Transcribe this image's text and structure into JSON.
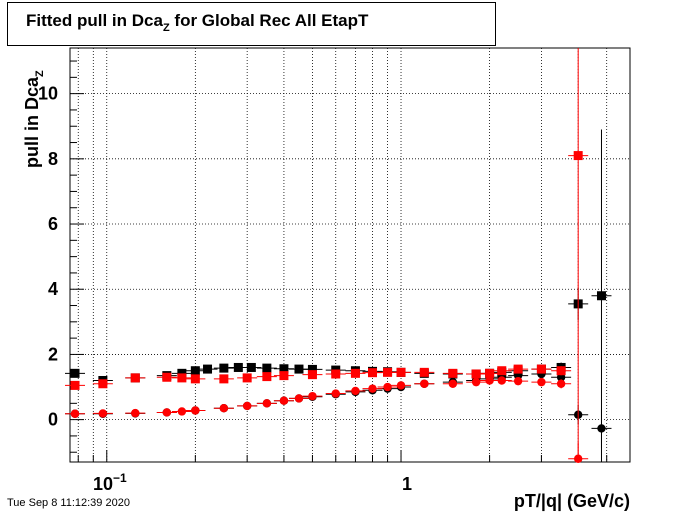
{
  "header": {
    "title_main": "Fitted pull in Dca",
    "title_sub": "Z",
    "title_rest": " for Global Rec All EtapT"
  },
  "footer": {
    "date": "Tue Sep  8 11:12:39 2020"
  },
  "colors": {
    "black_series": "#000000",
    "red_series": "#ff0000"
  },
  "chart_data": {
    "type": "scatter",
    "title": "Fitted pull in Dca_Z for Global Rec All EtapT",
    "xlabel": "pT/|q| (GeV/c)",
    "ylabel": "pull in Dca_Z",
    "x_scale": "log",
    "xlim": [
      0.075,
      6.0
    ],
    "ylim": [
      -1.3,
      11.4
    ],
    "grid": true,
    "x_tick_labels": [
      "10^-1",
      "1"
    ],
    "y_tick_labels": [
      "0",
      "2",
      "4",
      "6",
      "8",
      "10"
    ],
    "series": [
      {
        "color": "#000000",
        "marker": "square",
        "x": [
          0.078,
          0.097,
          0.125,
          0.16,
          0.18,
          0.2,
          0.22,
          0.25,
          0.28,
          0.31,
          0.35,
          0.4,
          0.45,
          0.5,
          0.6,
          0.7,
          0.8,
          0.9,
          1.0,
          1.2,
          1.5,
          1.8,
          2.0,
          2.2,
          2.5,
          3.0,
          3.5,
          4.0,
          4.8
        ],
        "y": [
          1.42,
          1.2,
          1.28,
          1.35,
          1.42,
          1.5,
          1.55,
          1.58,
          1.6,
          1.6,
          1.58,
          1.56,
          1.55,
          1.54,
          1.52,
          1.5,
          1.48,
          1.47,
          1.45,
          1.42,
          1.4,
          1.4,
          1.42,
          1.45,
          1.5,
          1.55,
          1.6,
          3.55,
          3.8
        ],
        "y_err": [
          0.05,
          0.04,
          0.03,
          0.03,
          0.03,
          0.03,
          0.03,
          0.03,
          0.03,
          0.03,
          0.03,
          0.03,
          0.03,
          0.03,
          0.03,
          0.03,
          0.03,
          0.03,
          0.04,
          0.04,
          0.05,
          0.06,
          0.07,
          0.08,
          0.1,
          0.12,
          0.15,
          0.5,
          5.1
        ]
      },
      {
        "color": "#000000",
        "marker": "circle",
        "x": [
          0.078,
          0.097,
          0.125,
          0.16,
          0.2,
          0.25,
          0.3,
          0.35,
          0.4,
          0.45,
          0.5,
          0.6,
          0.7,
          0.8,
          0.9,
          1.0,
          1.2,
          1.5,
          1.8,
          2.0,
          2.2,
          2.5,
          3.0,
          3.5,
          4.0,
          4.8
        ],
        "y": [
          0.18,
          0.18,
          0.19,
          0.22,
          0.28,
          0.35,
          0.42,
          0.5,
          0.58,
          0.65,
          0.7,
          0.78,
          0.85,
          0.9,
          0.95,
          1.0,
          1.1,
          1.15,
          1.2,
          1.25,
          1.3,
          1.35,
          1.4,
          1.3,
          0.15,
          -0.27
        ],
        "y_err": [
          0.03,
          0.02,
          0.02,
          0.02,
          0.02,
          0.02,
          0.02,
          0.02,
          0.02,
          0.02,
          0.02,
          0.02,
          0.02,
          0.02,
          0.03,
          0.03,
          0.04,
          0.05,
          0.06,
          0.07,
          0.08,
          0.09,
          0.1,
          0.12,
          0.3,
          0.6
        ]
      },
      {
        "color": "#ff0000",
        "marker": "square",
        "x": [
          0.078,
          0.097,
          0.125,
          0.16,
          0.18,
          0.2,
          0.25,
          0.3,
          0.35,
          0.4,
          0.5,
          0.6,
          0.7,
          0.8,
          0.9,
          1.0,
          1.2,
          1.5,
          1.8,
          2.0,
          2.2,
          2.5,
          3.0,
          3.5,
          4.0
        ],
        "y": [
          1.05,
          1.1,
          1.28,
          1.3,
          1.28,
          1.25,
          1.25,
          1.28,
          1.32,
          1.35,
          1.38,
          1.4,
          1.42,
          1.44,
          1.45,
          1.45,
          1.45,
          1.42,
          1.4,
          1.42,
          1.5,
          1.55,
          1.55,
          1.5,
          8.1
        ],
        "y_err": [
          0.04,
          0.03,
          0.03,
          0.03,
          0.03,
          0.03,
          0.03,
          0.03,
          0.03,
          0.03,
          0.03,
          0.03,
          0.03,
          0.03,
          0.03,
          0.04,
          0.04,
          0.05,
          0.06,
          0.07,
          0.08,
          0.09,
          0.11,
          0.14,
          11.0
        ]
      },
      {
        "color": "#ff0000",
        "marker": "circle",
        "x": [
          0.078,
          0.097,
          0.125,
          0.16,
          0.18,
          0.2,
          0.25,
          0.3,
          0.35,
          0.4,
          0.45,
          0.5,
          0.6,
          0.7,
          0.8,
          0.9,
          1.0,
          1.2,
          1.5,
          1.8,
          2.0,
          2.2,
          2.5,
          3.0,
          3.5,
          4.0
        ],
        "y": [
          0.18,
          0.19,
          0.2,
          0.22,
          0.25,
          0.28,
          0.35,
          0.42,
          0.5,
          0.58,
          0.65,
          0.72,
          0.8,
          0.88,
          0.95,
          1.0,
          1.05,
          1.1,
          1.1,
          1.15,
          1.2,
          1.2,
          1.18,
          1.15,
          1.1,
          -1.2
        ],
        "y_err": [
          0.03,
          0.02,
          0.02,
          0.02,
          0.02,
          0.02,
          0.02,
          0.02,
          0.02,
          0.02,
          0.02,
          0.02,
          0.02,
          0.02,
          0.03,
          0.03,
          0.04,
          0.04,
          0.05,
          0.06,
          0.07,
          0.08,
          0.09,
          0.11,
          0.14,
          0.5
        ]
      }
    ]
  }
}
